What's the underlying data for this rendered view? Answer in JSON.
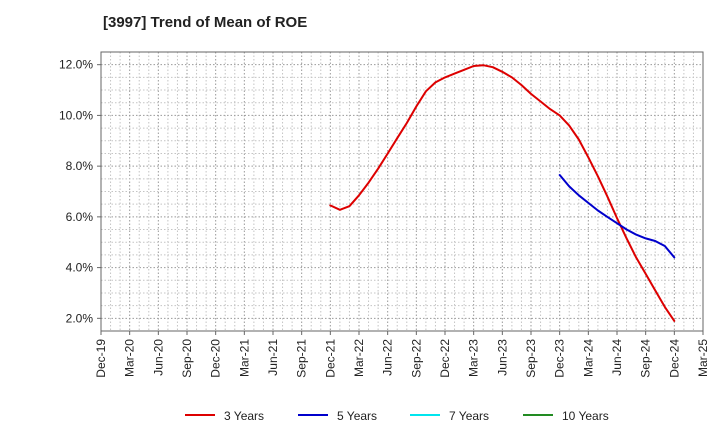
{
  "chart_data": {
    "type": "line",
    "title": "[3997]  Trend of Mean of ROE",
    "xlabel": "",
    "ylabel": "",
    "x_ticks": [
      "Dec-19",
      "Mar-20",
      "Jun-20",
      "Sep-20",
      "Dec-20",
      "Mar-21",
      "Jun-21",
      "Sep-21",
      "Dec-21",
      "Mar-22",
      "Jun-22",
      "Sep-22",
      "Dec-22",
      "Mar-23",
      "Jun-23",
      "Sep-23",
      "Dec-23",
      "Mar-24",
      "Jun-24",
      "Sep-24",
      "Dec-24",
      "Mar-25"
    ],
    "y_ticks": [
      "2.0%",
      "4.0%",
      "6.0%",
      "8.0%",
      "10.0%",
      "12.0%"
    ],
    "ylim": [
      1.5,
      12.5
    ],
    "y_unit": "%",
    "grid": "dotted, on",
    "legend_position": "bottom-center",
    "series": [
      {
        "name": "3 Years",
        "color": "#dd0000",
        "points": [
          [
            "Dec-21",
            6.45
          ],
          [
            "Jan-22",
            6.28
          ],
          [
            "Feb-22",
            6.42
          ],
          [
            "Mar-22",
            6.85
          ],
          [
            "Apr-22",
            7.35
          ],
          [
            "May-22",
            7.9
          ],
          [
            "Jun-22",
            8.5
          ],
          [
            "Jul-22",
            9.1
          ],
          [
            "Aug-22",
            9.7
          ],
          [
            "Sep-22",
            10.35
          ],
          [
            "Oct-22",
            10.95
          ],
          [
            "Nov-22",
            11.3
          ],
          [
            "Dec-22",
            11.5
          ],
          [
            "Jan-23",
            11.65
          ],
          [
            "Feb-23",
            11.8
          ],
          [
            "Mar-23",
            11.95
          ],
          [
            "Apr-23",
            11.98
          ],
          [
            "May-23",
            11.9
          ],
          [
            "Jun-23",
            11.72
          ],
          [
            "Jul-23",
            11.5
          ],
          [
            "Aug-23",
            11.2
          ],
          [
            "Sep-23",
            10.85
          ],
          [
            "Oct-23",
            10.55
          ],
          [
            "Nov-23",
            10.25
          ],
          [
            "Dec-23",
            10.0
          ],
          [
            "Jan-24",
            9.6
          ],
          [
            "Feb-24",
            9.05
          ],
          [
            "Mar-24",
            8.35
          ],
          [
            "Apr-24",
            7.6
          ],
          [
            "May-24",
            6.8
          ],
          [
            "Jun-24",
            5.95
          ],
          [
            "Jul-24",
            5.15
          ],
          [
            "Aug-24",
            4.4
          ],
          [
            "Sep-24",
            3.75
          ],
          [
            "Oct-24",
            3.1
          ],
          [
            "Nov-24",
            2.45
          ],
          [
            "Dec-24",
            1.9
          ]
        ]
      },
      {
        "name": "5 Years",
        "color": "#0000cc",
        "points": [
          [
            "Dec-23",
            7.65
          ],
          [
            "Jan-24",
            7.2
          ],
          [
            "Feb-24",
            6.85
          ],
          [
            "Mar-24",
            6.55
          ],
          [
            "Apr-24",
            6.25
          ],
          [
            "May-24",
            6.0
          ],
          [
            "Jun-24",
            5.75
          ],
          [
            "Jul-24",
            5.5
          ],
          [
            "Aug-24",
            5.3
          ],
          [
            "Sep-24",
            5.15
          ],
          [
            "Oct-24",
            5.05
          ],
          [
            "Nov-24",
            4.85
          ],
          [
            "Dec-24",
            4.4
          ]
        ]
      },
      {
        "name": "7 Years",
        "color": "#00e5ee",
        "points": []
      },
      {
        "name": "10 Years",
        "color": "#228b22",
        "points": []
      }
    ]
  }
}
